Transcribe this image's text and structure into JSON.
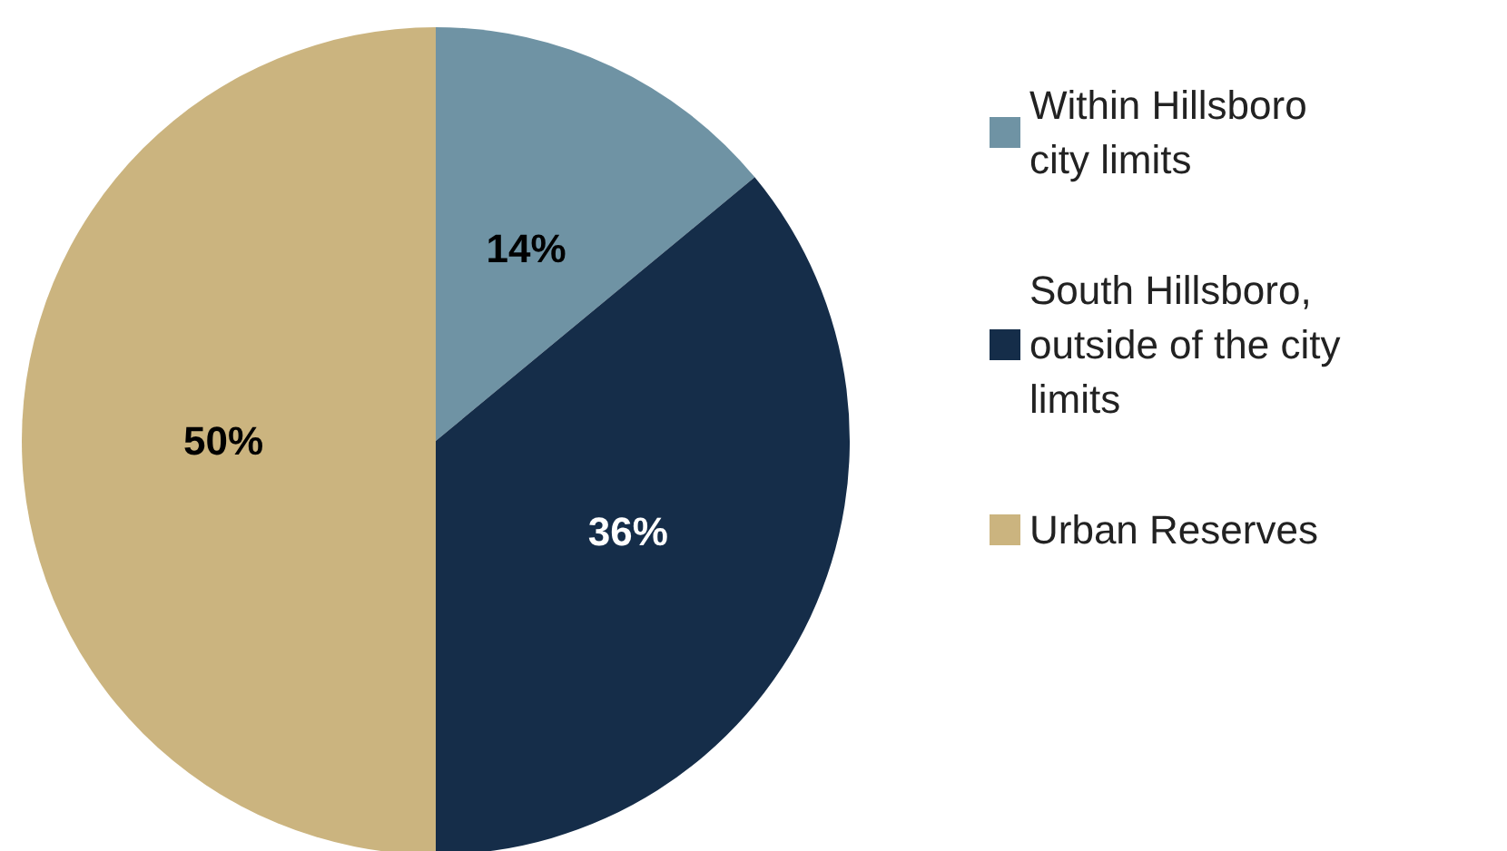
{
  "chart_data": {
    "type": "pie",
    "categories": [
      "Within Hillsboro city limits",
      "South Hillsboro, outside of the city limits",
      "Urban Reserves"
    ],
    "values": [
      14,
      36,
      50
    ],
    "colors": [
      "#6f93a4",
      "#152d49",
      "#cbb47f"
    ],
    "value_labels": [
      "14%",
      "36%",
      "50%"
    ],
    "legend": "right"
  }
}
